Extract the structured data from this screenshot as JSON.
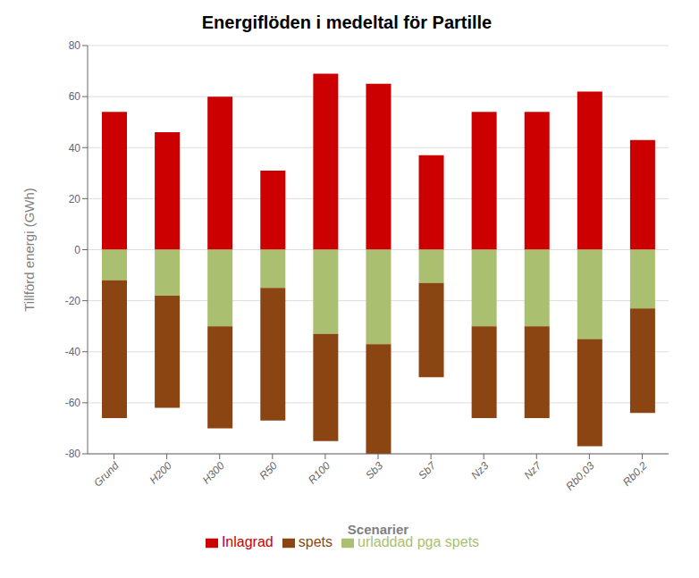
{
  "chart_data": {
    "type": "bar",
    "title": "Energiflöden i medeltal för Partille",
    "xlabel": "Scenarier",
    "ylabel": "Tillförd energi (GWh)",
    "categories": [
      "Grund",
      "H200",
      "H300",
      "R50",
      "R100",
      "Sb3",
      "Sb7",
      "Nz3",
      "Nz7",
      "Rb0,03",
      "Rb0,2"
    ],
    "series": [
      {
        "name": "Inlagrad",
        "color": "#CC0000",
        "values": [
          54,
          46,
          60,
          31,
          69,
          65,
          37,
          54,
          54,
          62,
          43
        ]
      },
      {
        "name": "urladdad pga spets",
        "color": "#AABF70",
        "values": [
          -12,
          -18,
          -30,
          -15,
          -33,
          -37,
          -13,
          -30,
          -30,
          -35,
          -23
        ]
      },
      {
        "name": "spets",
        "color": "#8B4513",
        "values": [
          -54,
          -44,
          -40,
          -52,
          -42,
          -43,
          -37,
          -36,
          -36,
          -42,
          -41
        ]
      }
    ],
    "ylim": [
      -80,
      80
    ],
    "yticks": [
      -80,
      -60,
      -40,
      -20,
      0,
      20,
      40,
      60,
      80
    ],
    "grid": true,
    "stacked": true,
    "legend": "bottom"
  }
}
